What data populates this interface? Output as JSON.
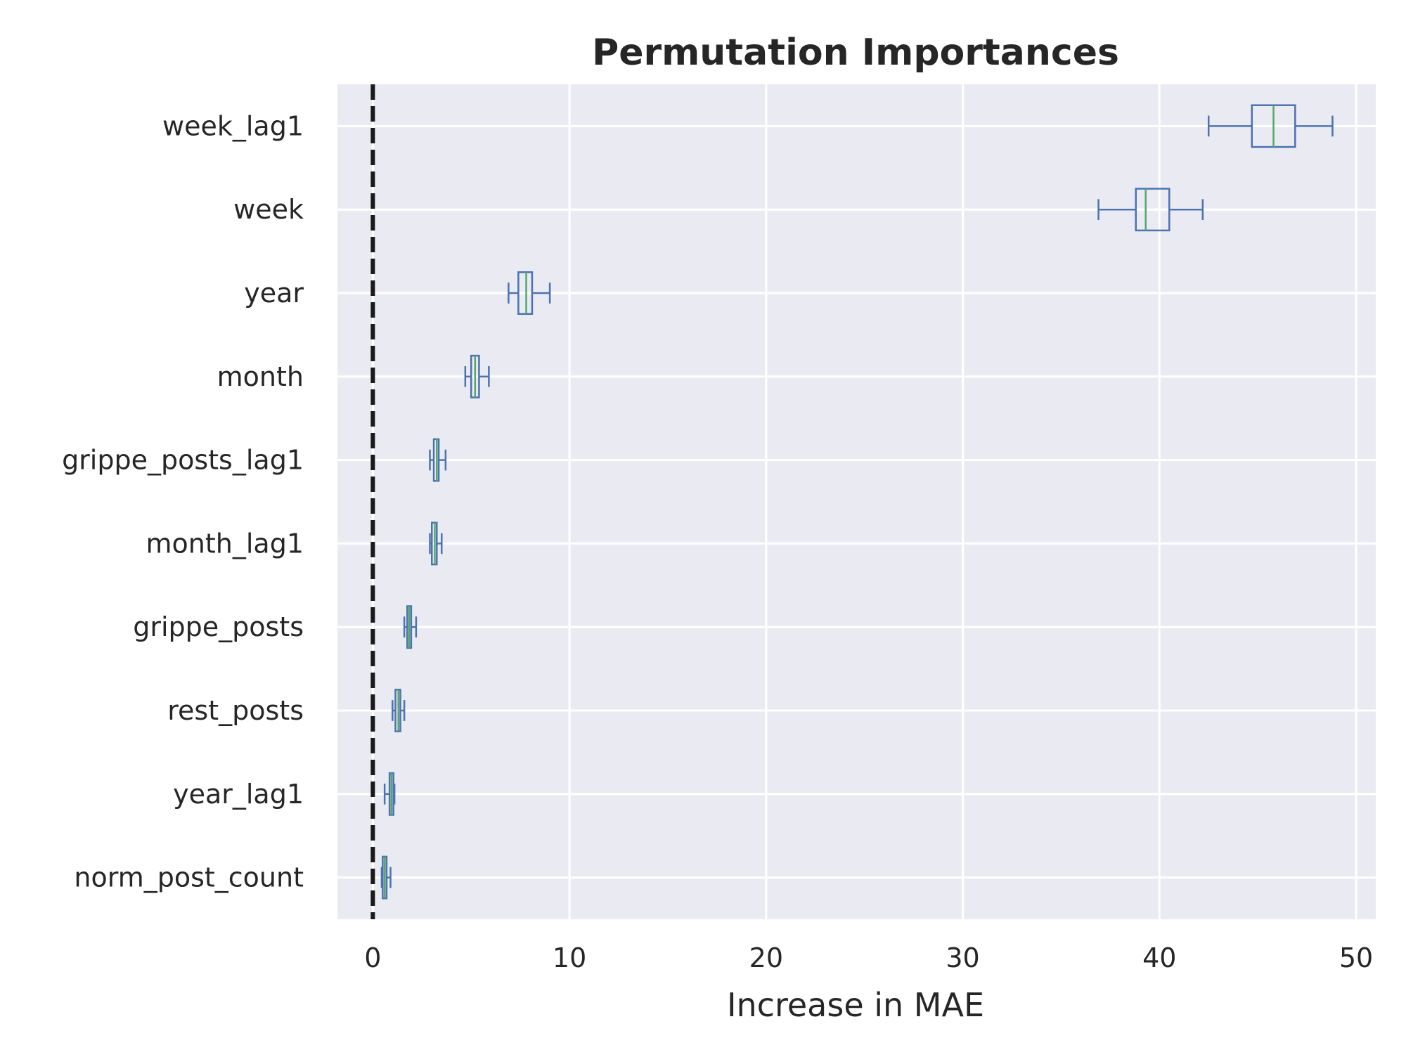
{
  "chart_data": {
    "type": "boxplot",
    "orientation": "horizontal",
    "title": "Permutation Importances",
    "xlabel": "Increase in MAE",
    "ylabel": "",
    "xlim": [
      -1.8,
      51.0
    ],
    "xticks": [
      0,
      10,
      20,
      30,
      40,
      50
    ],
    "xtick_labels": [
      "0",
      "10",
      "20",
      "30",
      "40",
      "50"
    ],
    "grid": true,
    "reference_line": {
      "x": 0,
      "style": "dashed",
      "color": "#1a1a1a"
    },
    "colors": {
      "background": "#eaeaf2",
      "grid": "#ffffff",
      "box": "#4c72b0",
      "median": "#55a868"
    },
    "categories": [
      "week_lag1",
      "week",
      "year",
      "month",
      "grippe_posts_lag1",
      "month_lag1",
      "grippe_posts",
      "rest_posts",
      "year_lag1",
      "norm_post_count"
    ],
    "boxes": [
      {
        "feature": "week_lag1",
        "whislo": 42.5,
        "q1": 44.7,
        "med": 45.8,
        "q3": 46.9,
        "whishi": 48.8
      },
      {
        "feature": "week",
        "whislo": 36.9,
        "q1": 38.8,
        "med": 39.3,
        "q3": 40.5,
        "whishi": 42.2
      },
      {
        "feature": "year",
        "whislo": 6.9,
        "q1": 7.4,
        "med": 7.8,
        "q3": 8.1,
        "whishi": 9.0
      },
      {
        "feature": "month",
        "whislo": 4.7,
        "q1": 5.0,
        "med": 5.2,
        "q3": 5.4,
        "whishi": 5.9
      },
      {
        "feature": "grippe_posts_lag1",
        "whislo": 2.9,
        "q1": 3.1,
        "med": 3.25,
        "q3": 3.35,
        "whishi": 3.7
      },
      {
        "feature": "month_lag1",
        "whislo": 2.9,
        "q1": 3.0,
        "med": 3.15,
        "q3": 3.25,
        "whishi": 3.5
      },
      {
        "feature": "grippe_posts",
        "whislo": 1.6,
        "q1": 1.75,
        "med": 1.85,
        "q3": 1.95,
        "whishi": 2.2
      },
      {
        "feature": "rest_posts",
        "whislo": 1.0,
        "q1": 1.15,
        "med": 1.3,
        "q3": 1.4,
        "whishi": 1.6
      },
      {
        "feature": "year_lag1",
        "whislo": 0.6,
        "q1": 0.85,
        "med": 0.95,
        "q3": 1.05,
        "whishi": 1.1
      },
      {
        "feature": "norm_post_count",
        "whislo": 0.45,
        "q1": 0.5,
        "med": 0.6,
        "q3": 0.7,
        "whishi": 0.9
      }
    ]
  }
}
